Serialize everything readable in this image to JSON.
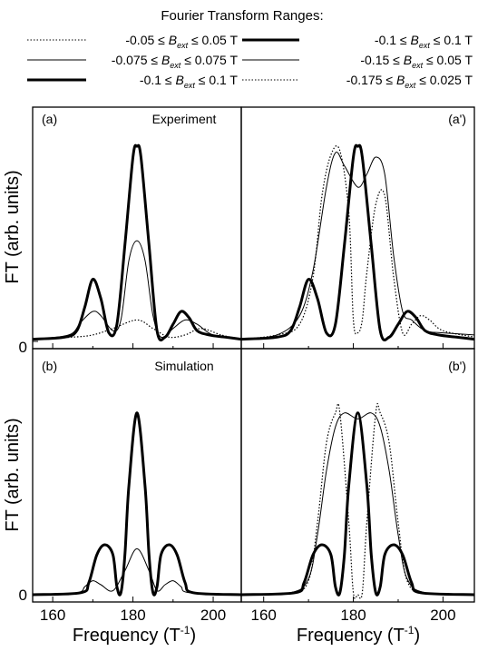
{
  "legend": {
    "title": "Fourier Transform Ranges:",
    "entries": [
      {
        "id": "e1",
        "pre": "-0.05 ≤ ",
        "b": "B",
        "sub": "ext",
        "post": " ≤ 0.05   T",
        "style": "dotted"
      },
      {
        "id": "e2",
        "pre": "-0.075 ≤ ",
        "b": "B",
        "sub": "ext",
        "post": " ≤ 0.075 T",
        "style": "thin"
      },
      {
        "id": "e3",
        "pre": "-0.1 ≤ ",
        "b": "B",
        "sub": "ext",
        "post": " ≤ 0.1     T",
        "style": "thick"
      },
      {
        "id": "e4",
        "pre": "-0.1 ≤ ",
        "b": "B",
        "sub": "ext",
        "post": " ≤ 0.1     T",
        "style": "thick"
      },
      {
        "id": "e5",
        "pre": "-0.15 ≤ ",
        "b": "B",
        "sub": "ext",
        "post": " ≤ 0.05    T",
        "style": "thin"
      },
      {
        "id": "e6",
        "pre": "-0.175 ≤ ",
        "b": "B",
        "sub": "ext",
        "post": " ≤ 0.025 T",
        "style": "dotted"
      }
    ]
  },
  "axes": {
    "ylabel": "FT (arb. units)",
    "xlabel_main": "Frequency (T",
    "xlabel_sup": "-1",
    "xlabel_close": ")",
    "y_tick_zero": "0",
    "x_ticks": [
      "160",
      "180",
      "200"
    ]
  },
  "panels": {
    "a": {
      "label": "(a)",
      "title": "Experiment"
    },
    "a_prime": {
      "label": "(a')"
    },
    "b": {
      "label": "(b)",
      "title": "Simulation"
    },
    "b_prime": {
      "label": "(b')"
    }
  },
  "chart_data": {
    "type": "line",
    "xlim": [
      155,
      207
    ],
    "ylim": [
      0,
      1
    ],
    "x_ticks": [
      160,
      180,
      200
    ],
    "grid": false,
    "legend_placement": "top",
    "panels": [
      {
        "id": "a",
        "series": [
          {
            "style": "dotted",
            "points": [
              [
                155,
                0.01
              ],
              [
                165,
                0.02
              ],
              [
                170,
                0.03
              ],
              [
                175,
                0.06
              ],
              [
                181,
                0.1
              ],
              [
                185,
                0.06
              ],
              [
                189,
                0.02
              ],
              [
                193,
                0.03
              ],
              [
                197,
                0.06
              ],
              [
                202,
                0.03
              ],
              [
                207,
                0.01
              ]
            ]
          },
          {
            "style": "thin",
            "points": [
              [
                155,
                0.01
              ],
              [
                164,
                0.03
              ],
              [
                167,
                0.09
              ],
              [
                170,
                0.14
              ],
              [
                172,
                0.12
              ],
              [
                175,
                0.05
              ],
              [
                177,
                0.1
              ],
              [
                179,
                0.38
              ],
              [
                181,
                0.47
              ],
              [
                183,
                0.38
              ],
              [
                185,
                0.12
              ],
              [
                187,
                0.02
              ],
              [
                190,
                0.06
              ],
              [
                193,
                0.1
              ],
              [
                196,
                0.08
              ],
              [
                200,
                0.03
              ],
              [
                207,
                0.01
              ]
            ]
          },
          {
            "style": "thick",
            "points": [
              [
                155,
                0.01
              ],
              [
                163,
                0.02
              ],
              [
                166,
                0.05
              ],
              [
                168,
                0.16
              ],
              [
                170,
                0.29
              ],
              [
                172,
                0.2
              ],
              [
                174,
                0.04
              ],
              [
                176,
                0.08
              ],
              [
                178,
                0.45
              ],
              [
                180,
                0.86
              ],
              [
                181,
                0.91
              ],
              [
                182,
                0.86
              ],
              [
                184,
                0.45
              ],
              [
                186,
                0.05
              ],
              [
                188,
                0.02
              ],
              [
                190,
                0.08
              ],
              [
                192,
                0.14
              ],
              [
                194,
                0.11
              ],
              [
                196,
                0.05
              ],
              [
                199,
                0.03
              ],
              [
                203,
                0.02
              ],
              [
                207,
                0.01
              ]
            ]
          }
        ]
      },
      {
        "id": "a_prime",
        "series": [
          {
            "style": "thick",
            "points": [
              [
                155,
                0.01
              ],
              [
                163,
                0.02
              ],
              [
                166,
                0.05
              ],
              [
                168,
                0.16
              ],
              [
                170,
                0.29
              ],
              [
                172,
                0.2
              ],
              [
                174,
                0.04
              ],
              [
                176,
                0.08
              ],
              [
                178,
                0.45
              ],
              [
                180,
                0.86
              ],
              [
                181,
                0.91
              ],
              [
                182,
                0.86
              ],
              [
                184,
                0.45
              ],
              [
                186,
                0.05
              ],
              [
                188,
                0.02
              ],
              [
                190,
                0.08
              ],
              [
                192,
                0.14
              ],
              [
                194,
                0.11
              ],
              [
                196,
                0.05
              ],
              [
                199,
                0.03
              ],
              [
                203,
                0.02
              ],
              [
                207,
                0.01
              ]
            ]
          },
          {
            "style": "thin",
            "points": [
              [
                155,
                0.01
              ],
              [
                163,
                0.03
              ],
              [
                168,
                0.12
              ],
              [
                171,
                0.33
              ],
              [
                174,
                0.72
              ],
              [
                176,
                0.88
              ],
              [
                178,
                0.82
              ],
              [
                181,
                0.72
              ],
              [
                183,
                0.78
              ],
              [
                185,
                0.86
              ],
              [
                187,
                0.78
              ],
              [
                189,
                0.4
              ],
              [
                191,
                0.14
              ],
              [
                193,
                0.1
              ],
              [
                196,
                0.05
              ],
              [
                200,
                0.04
              ],
              [
                207,
                0.03
              ]
            ]
          },
          {
            "style": "dotted",
            "points": [
              [
                155,
                0.01
              ],
              [
                163,
                0.03
              ],
              [
                168,
                0.08
              ],
              [
                171,
                0.3
              ],
              [
                173,
                0.68
              ],
              [
                175,
                0.87
              ],
              [
                177,
                0.89
              ],
              [
                179,
                0.6
              ],
              [
                180,
                0.1
              ],
              [
                181,
                0.04
              ],
              [
                182,
                0.1
              ],
              [
                183,
                0.32
              ],
              [
                185,
                0.64
              ],
              [
                187,
                0.68
              ],
              [
                189,
                0.3
              ],
              [
                191,
                0.04
              ],
              [
                193,
                0.08
              ],
              [
                195,
                0.12
              ],
              [
                197,
                0.1
              ],
              [
                200,
                0.05
              ],
              [
                207,
                0.02
              ]
            ]
          }
        ]
      },
      {
        "id": "b",
        "series": [
          {
            "style": "thin",
            "points": [
              [
                155,
                0
              ],
              [
                166,
                0.01
              ],
              [
                168,
                0.04
              ],
              [
                170,
                0.07
              ],
              [
                172,
                0.05
              ],
              [
                175,
                0.02
              ],
              [
                178,
                0.12
              ],
              [
                181,
                0.23
              ],
              [
                184,
                0.12
              ],
              [
                186,
                0.02
              ],
              [
                188,
                0.05
              ],
              [
                190,
                0.07
              ],
              [
                192,
                0.04
              ],
              [
                194,
                0.01
              ],
              [
                207,
                0
              ]
            ]
          },
          {
            "style": "thick",
            "points": [
              [
                155,
                0
              ],
              [
                167,
                0.01
              ],
              [
                169,
                0.06
              ],
              [
                171,
                0.2
              ],
              [
                173,
                0.25
              ],
              [
                175,
                0.2
              ],
              [
                176,
                0.04
              ],
              [
                177,
                0.01
              ],
              [
                178,
                0.2
              ],
              [
                179,
                0.55
              ],
              [
                181,
                0.91
              ],
              [
                183,
                0.55
              ],
              [
                184,
                0.2
              ],
              [
                185,
                0.01
              ],
              [
                186,
                0.04
              ],
              [
                187,
                0.2
              ],
              [
                189,
                0.25
              ],
              [
                191,
                0.2
              ],
              [
                193,
                0.06
              ],
              [
                195,
                0.01
              ],
              [
                207,
                0
              ]
            ]
          }
        ]
      },
      {
        "id": "b_prime",
        "series": [
          {
            "style": "thin",
            "points": [
              [
                155,
                0
              ],
              [
                166,
                0.01
              ],
              [
                170,
                0.08
              ],
              [
                172,
                0.3
              ],
              [
                174,
                0.62
              ],
              [
                176,
                0.84
              ],
              [
                178,
                0.91
              ],
              [
                181,
                0.88
              ],
              [
                184,
                0.91
              ],
              [
                186,
                0.84
              ],
              [
                188,
                0.62
              ],
              [
                190,
                0.3
              ],
              [
                192,
                0.08
              ],
              [
                196,
                0.01
              ],
              [
                207,
                0
              ]
            ]
          },
          {
            "style": "dotted",
            "points": [
              [
                155,
                0
              ],
              [
                166,
                0.01
              ],
              [
                170,
                0.07
              ],
              [
                172,
                0.36
              ],
              [
                174,
                0.76
              ],
              [
                176,
                0.91
              ],
              [
                177,
                0.91
              ],
              [
                179,
                0.36
              ],
              [
                180,
                0.01
              ],
              [
                181,
                0
              ],
              [
                182,
                0.01
              ],
              [
                183,
                0.36
              ],
              [
                185,
                0.91
              ],
              [
                186,
                0.91
              ],
              [
                188,
                0.76
              ],
              [
                190,
                0.36
              ],
              [
                192,
                0.07
              ],
              [
                196,
                0.01
              ],
              [
                207,
                0
              ]
            ]
          },
          {
            "style": "thick",
            "points": [
              [
                155,
                0
              ],
              [
                167,
                0.01
              ],
              [
                169,
                0.06
              ],
              [
                171,
                0.2
              ],
              [
                173,
                0.25
              ],
              [
                175,
                0.2
              ],
              [
                176,
                0.04
              ],
              [
                177,
                0.01
              ],
              [
                178,
                0.2
              ],
              [
                179,
                0.55
              ],
              [
                181,
                0.91
              ],
              [
                183,
                0.55
              ],
              [
                184,
                0.2
              ],
              [
                185,
                0.01
              ],
              [
                186,
                0.04
              ],
              [
                187,
                0.2
              ],
              [
                189,
                0.25
              ],
              [
                191,
                0.2
              ],
              [
                193,
                0.06
              ],
              [
                195,
                0.01
              ],
              [
                207,
                0
              ]
            ]
          }
        ]
      }
    ]
  }
}
